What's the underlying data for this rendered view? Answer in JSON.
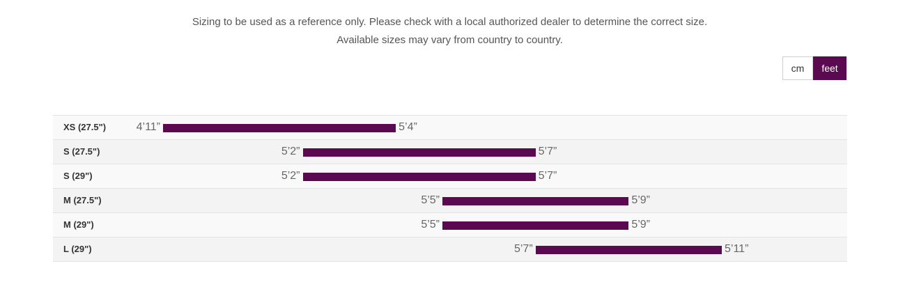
{
  "notice": {
    "line1": "Sizing to be used as a reference only. Please check with a local authorized dealer to determine the correct size.",
    "line2": "Available sizes may vary from country to country."
  },
  "units": {
    "cm_label": "cm",
    "feet_label": "feet",
    "selected": "feet"
  },
  "colors": {
    "bar": "#5b0a52",
    "active_toggle": "#5b0a52"
  },
  "chart_data": {
    "type": "bar",
    "orientation": "horizontal-range",
    "categories": [
      "XS (27.5\")",
      "S (27.5\")",
      "S (29\")",
      "M (27.5\")",
      "M (29\")",
      "L (29\")"
    ],
    "series": [
      {
        "min_inches": [
          59,
          62,
          62,
          65,
          65,
          67
        ],
        "max_inches": [
          64,
          67,
          67,
          69,
          69,
          71
        ],
        "min_labels": [
          "4’11”",
          "5’2”",
          "5’2”",
          "5’5”",
          "5’5”",
          "5’7”"
        ],
        "max_labels": [
          "5’4”",
          "5’7”",
          "5’7”",
          "5’9”",
          "5’9”",
          "5’11”"
        ]
      }
    ],
    "xlim": [
      56,
      78
    ],
    "grid": false,
    "legend": "none"
  }
}
